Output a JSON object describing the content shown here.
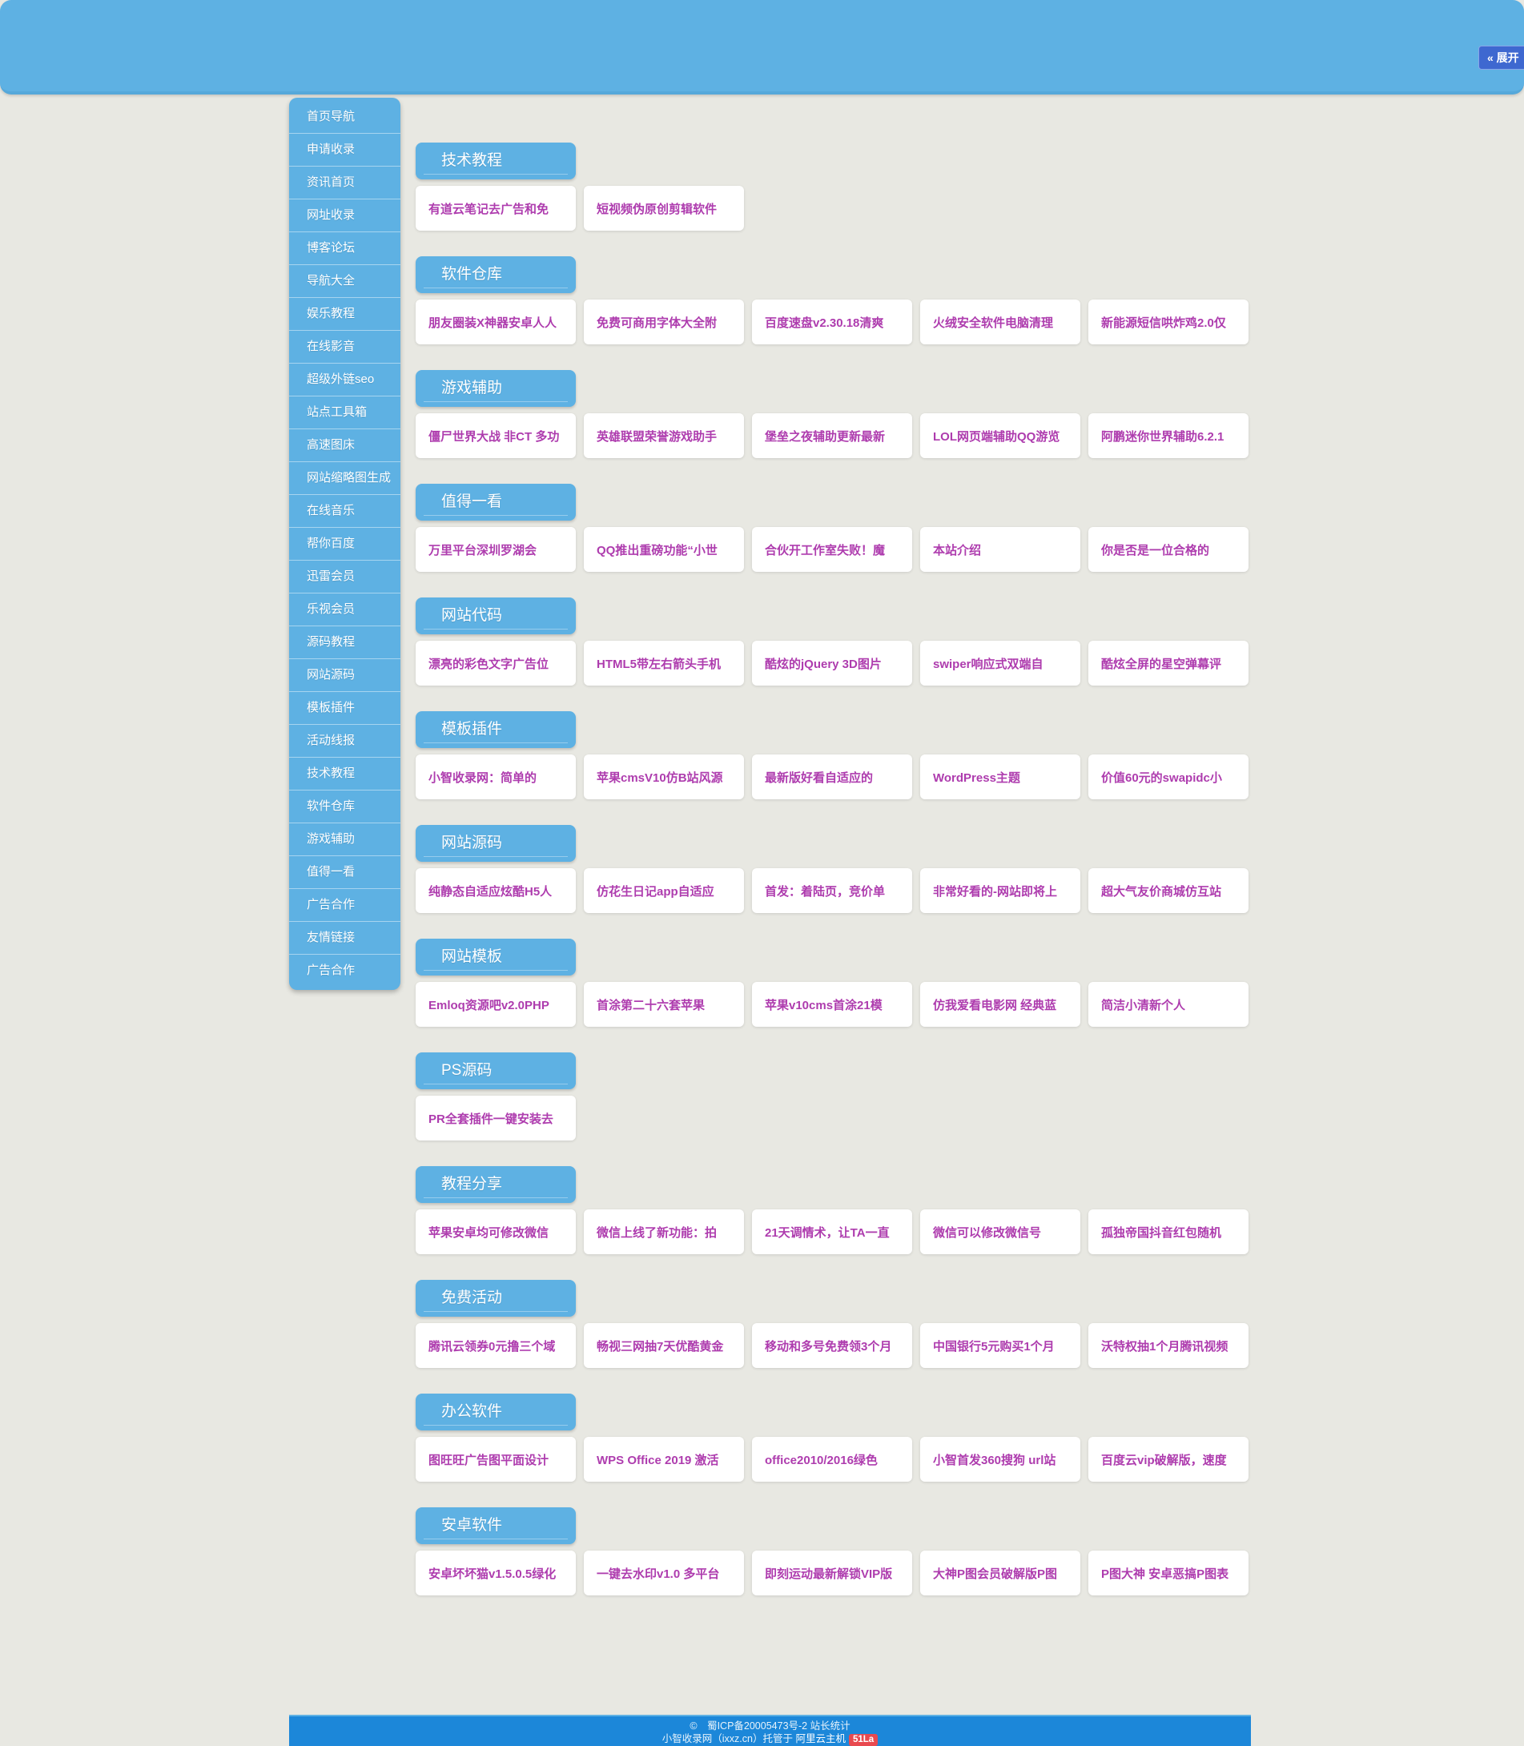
{
  "header": {
    "expand_label": "« 展开"
  },
  "sidebar": {
    "items": [
      "首页导航",
      "申请收录",
      "资讯首页",
      "网址收录",
      "博客论坛",
      "导航大全",
      "娱乐教程",
      "在线影音",
      "超级外链seo",
      "站点工具箱",
      "高速图床",
      "网站缩略图生成",
      "在线音乐",
      "帮你百度",
      "迅雷会员",
      "乐视会员",
      "源码教程",
      "网站源码",
      "模板插件",
      "活动线报",
      "技术教程",
      "软件仓库",
      "游戏辅助",
      "值得一看",
      "广告合作",
      "友情链接",
      "广告合作"
    ]
  },
  "sections": [
    {
      "title": "技术教程",
      "cards": [
        "有道云笔记去广告和免",
        "短视频伪原创剪辑软件"
      ]
    },
    {
      "title": "软件仓库",
      "cards": [
        "朋友圈装X神器安卓人人",
        "免费可商用字体大全附",
        "百度速盘v2.30.18清爽",
        "火绒安全软件电脑清理",
        "新能源短信哄炸鸡2.0仅"
      ]
    },
    {
      "title": "游戏辅助",
      "cards": [
        "僵尸世界大战 非CT 多功",
        "英雄联盟荣誉游戏助手",
        "堡垒之夜辅助更新最新",
        "LOL网页端辅助QQ游览",
        "阿鹏迷你世界辅助6.2.1"
      ]
    },
    {
      "title": "值得一看",
      "cards": [
        "万里平台深圳罗湖会",
        "QQ推出重磅功能“小世",
        "合伙开工作室失败！魔",
        "本站介绍",
        "你是否是一位合格的"
      ]
    },
    {
      "title": "网站代码",
      "cards": [
        "漂亮的彩色文字广告位",
        "HTML5带左右箭头手机",
        "酷炫的jQuery 3D图片",
        "swiper响应式双端自",
        "酷炫全屏的星空弹幕评"
      ]
    },
    {
      "title": "模板插件",
      "cards": [
        "小智收录网：简单的",
        "苹果cmsV10仿B站风源",
        "最新版好看自适应的",
        "WordPress主题",
        "价值60元的swapidc小"
      ]
    },
    {
      "title": "网站源码",
      "cards": [
        "纯静态自适应炫酷H5人",
        "仿花生日记app自适应",
        "首发：着陆页，竞价单",
        "非常好看的-网站即将上",
        "超大气友价商城仿互站"
      ]
    },
    {
      "title": "网站模板",
      "cards": [
        "Emloq资源吧v2.0PHP",
        "首涂第二十六套苹果",
        "苹果v10cms首涂21模",
        "仿我爱看电影网 经典蓝",
        "简洁小清新个人"
      ]
    },
    {
      "title": "PS源码",
      "cards": [
        "PR全套插件一键安装去"
      ]
    },
    {
      "title": "教程分享",
      "cards": [
        "苹果安卓均可修改微信",
        "微信上线了新功能：拍",
        "21天调情术，让TA一直",
        "微信可以修改微信号",
        "孤独帝国抖音红包随机"
      ]
    },
    {
      "title": "免费活动",
      "cards": [
        "腾讯云领券0元撸三个域",
        "畅视三网抽7天优酷黄金",
        "移动和多号免费领3个月",
        "中国银行5元购买1个月",
        "沃特权抽1个月腾讯视频"
      ]
    },
    {
      "title": "办公软件",
      "cards": [
        "图旺旺广告图平面设计",
        "WPS Office 2019 激活",
        "office2010/2016绿色",
        "小智首发360搜狗 url站",
        "百度云vip破解版，速度"
      ]
    },
    {
      "title": "安卓软件",
      "cards": [
        "安卓坏坏猫v1.5.0.5绿化",
        "一键去水印v1.0 多平台",
        "即刻运动最新解锁VIP版",
        "大神P图会员破解版P图",
        "P图大神 安卓恶搞P图表"
      ]
    }
  ],
  "footer": {
    "line1": "©　蜀ICP备20005473号-2 站长统计",
    "line2_prefix": "小智收录网（ixxz.cn）托管于 ",
    "line2_link": "阿里云主机",
    "badge": "51La"
  },
  "colors": {
    "page_background": "#e8e8e2",
    "primary_blue": "#5eb1e3",
    "footer_blue": "#1c87d9",
    "link_purple": "#ae3cae",
    "expand_button_blue": "#3e68d0",
    "badge_red": "#e8494f"
  }
}
